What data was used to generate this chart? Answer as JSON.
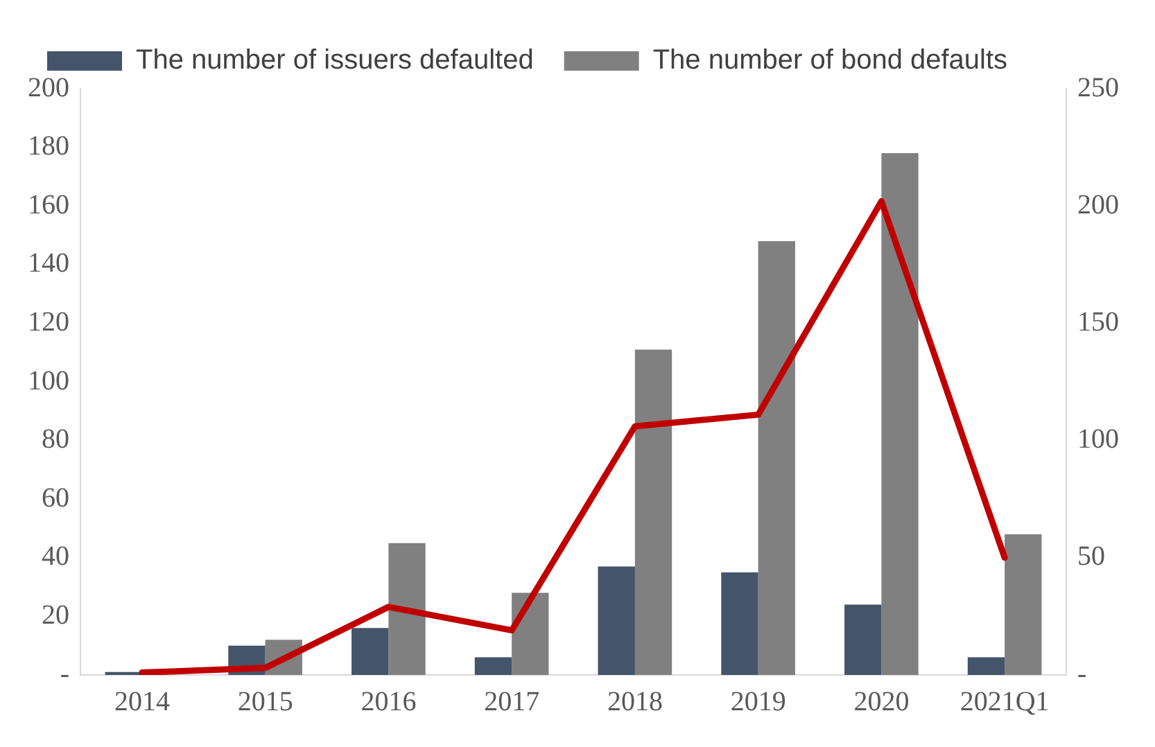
{
  "chart_data": {
    "type": "bar",
    "categories": [
      "2014",
      "2015",
      "2016",
      "2017",
      "2018",
      "2019",
      "2020",
      "2021Q1"
    ],
    "series": [
      {
        "name": "The number of issuers defaulted",
        "color": "#44546a",
        "values": [
          1,
          10,
          16,
          6,
          37,
          35,
          24,
          6
        ]
      },
      {
        "name": "The number of bond defaults",
        "color": "#808080",
        "values": [
          0,
          12,
          45,
          28,
          111,
          148,
          178,
          48
        ]
      },
      {
        "type": "line",
        "axis": "y2",
        "color": "#c00000",
        "values": [
          1,
          3,
          29,
          19,
          106,
          111,
          202,
          50
        ]
      }
    ],
    "ylim": [
      0,
      200
    ],
    "yticks": [
      {
        "value": 0,
        "label": "-"
      },
      20,
      40,
      60,
      80,
      100,
      120,
      140,
      160,
      180,
      200
    ],
    "y2lim": [
      0,
      250
    ],
    "y2ticks": [
      {
        "value": 0,
        "label": "-"
      },
      50,
      100,
      150,
      200,
      250
    ],
    "grid": false,
    "legend": "top left",
    "marker": "none"
  }
}
